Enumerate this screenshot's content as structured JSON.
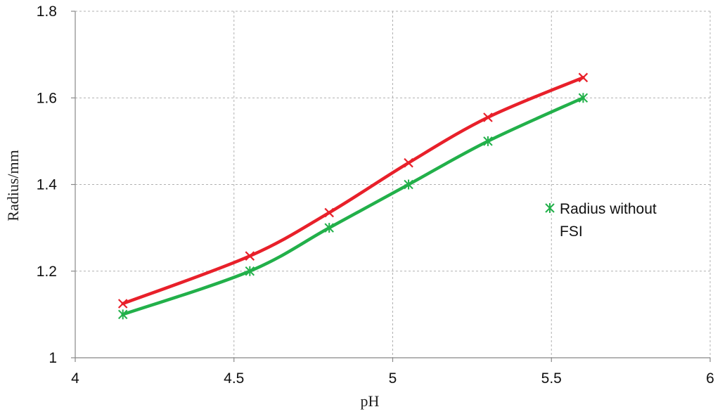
{
  "chart_data": {
    "type": "line",
    "title": "",
    "xlabel": "pH",
    "ylabel": "Radius/mm",
    "xlim": [
      4,
      6
    ],
    "ylim": [
      1,
      1.8
    ],
    "x_ticks": [
      "4",
      "4.5",
      "5",
      "5.5",
      "6"
    ],
    "y_ticks": [
      "1",
      "1.2",
      "1.4",
      "1.6",
      "1.8"
    ],
    "grid": true,
    "legend_position": "right",
    "series": [
      {
        "name": "",
        "color": "#e8202a",
        "marker": "x",
        "x": [
          4.15,
          4.55,
          4.8,
          5.05,
          5.3,
          5.6
        ],
        "y": [
          1.125,
          1.235,
          1.335,
          1.45,
          1.555,
          1.647
        ]
      },
      {
        "name": "Radius without FSI",
        "color": "#22b04a",
        "marker": "asterisk",
        "x": [
          4.15,
          4.55,
          4.8,
          5.05,
          5.3,
          5.6
        ],
        "y": [
          1.1,
          1.2,
          1.3,
          1.4,
          1.5,
          1.6
        ]
      }
    ],
    "legend": {
      "lines": [
        "Radius without",
        "FSI"
      ]
    }
  }
}
